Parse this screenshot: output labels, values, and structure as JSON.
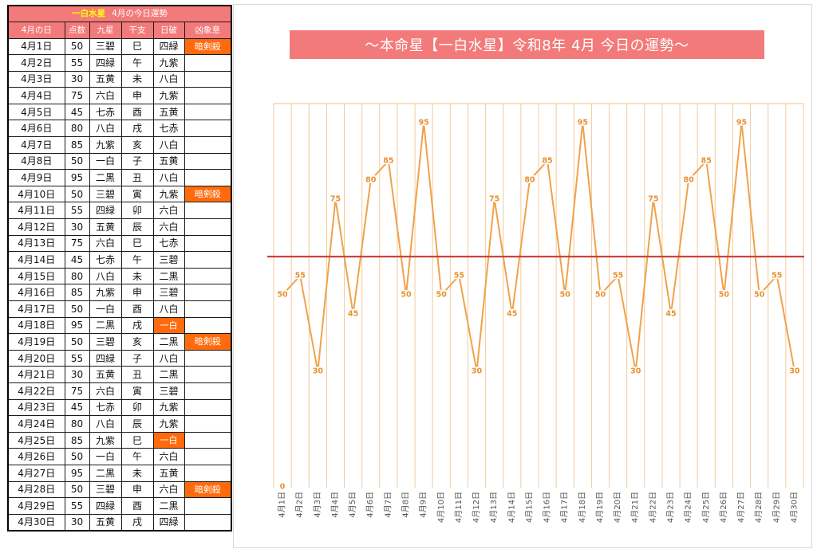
{
  "colors": {
    "header": "#f37a7a",
    "highlight": "#ff6a0d",
    "title_star": "#ffff00",
    "line": "#f0a24a",
    "label": "#e8912f",
    "grid": "#f4c99a",
    "reference_line": "#c8453c"
  },
  "table": {
    "title_star": "一白水星",
    "title_text": "4月の今日運勢",
    "headers": [
      "4月の日",
      "点数",
      "九星",
      "干支",
      "日破",
      "凶象意"
    ],
    "rows": [
      {
        "date": "4月1日",
        "score": "50",
        "kyusei": "三碧",
        "eto": "巳",
        "nippa": "四緑",
        "kyoi": "暗剣殺"
      },
      {
        "date": "4月2日",
        "score": "55",
        "kyusei": "四緑",
        "eto": "午",
        "nippa": "九紫"
      },
      {
        "date": "4月3日",
        "score": "30",
        "kyusei": "五黄",
        "eto": "未",
        "nippa": "八白"
      },
      {
        "date": "4月4日",
        "score": "75",
        "kyusei": "六白",
        "eto": "申",
        "nippa": "九紫"
      },
      {
        "date": "4月5日",
        "score": "45",
        "kyusei": "七赤",
        "eto": "酉",
        "nippa": "五黄"
      },
      {
        "date": "4月6日",
        "score": "80",
        "kyusei": "八白",
        "eto": "戌",
        "nippa": "七赤"
      },
      {
        "date": "4月7日",
        "score": "85",
        "kyusei": "九紫",
        "eto": "亥",
        "nippa": "八白"
      },
      {
        "date": "4月8日",
        "score": "50",
        "kyusei": "一白",
        "eto": "子",
        "nippa": "五黄"
      },
      {
        "date": "4月9日",
        "score": "95",
        "kyusei": "二黒",
        "eto": "丑",
        "nippa": "八白"
      },
      {
        "date": "4月10日",
        "score": "50",
        "kyusei": "三碧",
        "eto": "寅",
        "nippa": "九紫",
        "kyoi": "暗剣殺"
      },
      {
        "date": "4月11日",
        "score": "55",
        "kyusei": "四緑",
        "eto": "卯",
        "nippa": "六白"
      },
      {
        "date": "4月12日",
        "score": "30",
        "kyusei": "五黄",
        "eto": "辰",
        "nippa": "六白"
      },
      {
        "date": "4月13日",
        "score": "75",
        "kyusei": "六白",
        "eto": "巳",
        "nippa": "七赤"
      },
      {
        "date": "4月14日",
        "score": "45",
        "kyusei": "七赤",
        "eto": "午",
        "nippa": "三碧"
      },
      {
        "date": "4月15日",
        "score": "80",
        "kyusei": "八白",
        "eto": "未",
        "nippa": "二黒"
      },
      {
        "date": "4月16日",
        "score": "85",
        "kyusei": "九紫",
        "eto": "申",
        "nippa": "三碧"
      },
      {
        "date": "4月17日",
        "score": "50",
        "kyusei": "一白",
        "eto": "酉",
        "nippa": "八白"
      },
      {
        "date": "4月18日",
        "score": "95",
        "kyusei": "二黒",
        "eto": "戌",
        "nippa": "一白",
        "nippa_highlight": true
      },
      {
        "date": "4月19日",
        "score": "50",
        "kyusei": "三碧",
        "eto": "亥",
        "nippa": "二黒",
        "kyoi": "暗剣殺"
      },
      {
        "date": "4月20日",
        "score": "55",
        "kyusei": "四緑",
        "eto": "子",
        "nippa": "八白"
      },
      {
        "date": "4月21日",
        "score": "30",
        "kyusei": "五黄",
        "eto": "丑",
        "nippa": "二黒"
      },
      {
        "date": "4月22日",
        "score": "75",
        "kyusei": "六白",
        "eto": "寅",
        "nippa": "三碧"
      },
      {
        "date": "4月23日",
        "score": "45",
        "kyusei": "七赤",
        "eto": "卯",
        "nippa": "九紫"
      },
      {
        "date": "4月24日",
        "score": "80",
        "kyusei": "八白",
        "eto": "辰",
        "nippa": "九紫"
      },
      {
        "date": "4月25日",
        "score": "85",
        "kyusei": "九紫",
        "eto": "巳",
        "nippa": "一白",
        "nippa_highlight": true
      },
      {
        "date": "4月26日",
        "score": "50",
        "kyusei": "一白",
        "eto": "午",
        "nippa": "六白"
      },
      {
        "date": "4月27日",
        "score": "95",
        "kyusei": "二黒",
        "eto": "未",
        "nippa": "五黄"
      },
      {
        "date": "4月28日",
        "score": "50",
        "kyusei": "三碧",
        "eto": "申",
        "nippa": "六白",
        "kyoi": "暗剣殺"
      },
      {
        "date": "4月29日",
        "score": "55",
        "kyusei": "四緑",
        "eto": "酉",
        "nippa": "二黒"
      },
      {
        "date": "4月30日",
        "score": "30",
        "kyusei": "五黄",
        "eto": "戌",
        "nippa": "四緑"
      }
    ]
  },
  "chart_data": {
    "type": "line",
    "title": "～本命星【一白水星】令和8年 4月 今日の運勢～",
    "categories": [
      "4月1日",
      "4月2日",
      "4月3日",
      "4月4日",
      "4月5日",
      "4月6日",
      "4月7日",
      "4月8日",
      "4月9日",
      "4月10日",
      "4月11日",
      "4月12日",
      "4月13日",
      "4月14日",
      "4月15日",
      "4月16日",
      "4月17日",
      "4月18日",
      "4月19日",
      "4月20日",
      "4月21日",
      "4月22日",
      "4月23日",
      "4月24日",
      "4月25日",
      "4月26日",
      "4月27日",
      "4月28日",
      "4月29日",
      "4月30日"
    ],
    "values": [
      50,
      55,
      30,
      75,
      45,
      80,
      85,
      50,
      95,
      50,
      55,
      30,
      75,
      45,
      80,
      85,
      50,
      95,
      50,
      55,
      30,
      75,
      45,
      80,
      85,
      50,
      95,
      50,
      55,
      30
    ],
    "ylim": [
      0,
      100
    ],
    "reference_line": 60,
    "y_min_label": "0",
    "grid": "vertical",
    "data_labels": true
  }
}
